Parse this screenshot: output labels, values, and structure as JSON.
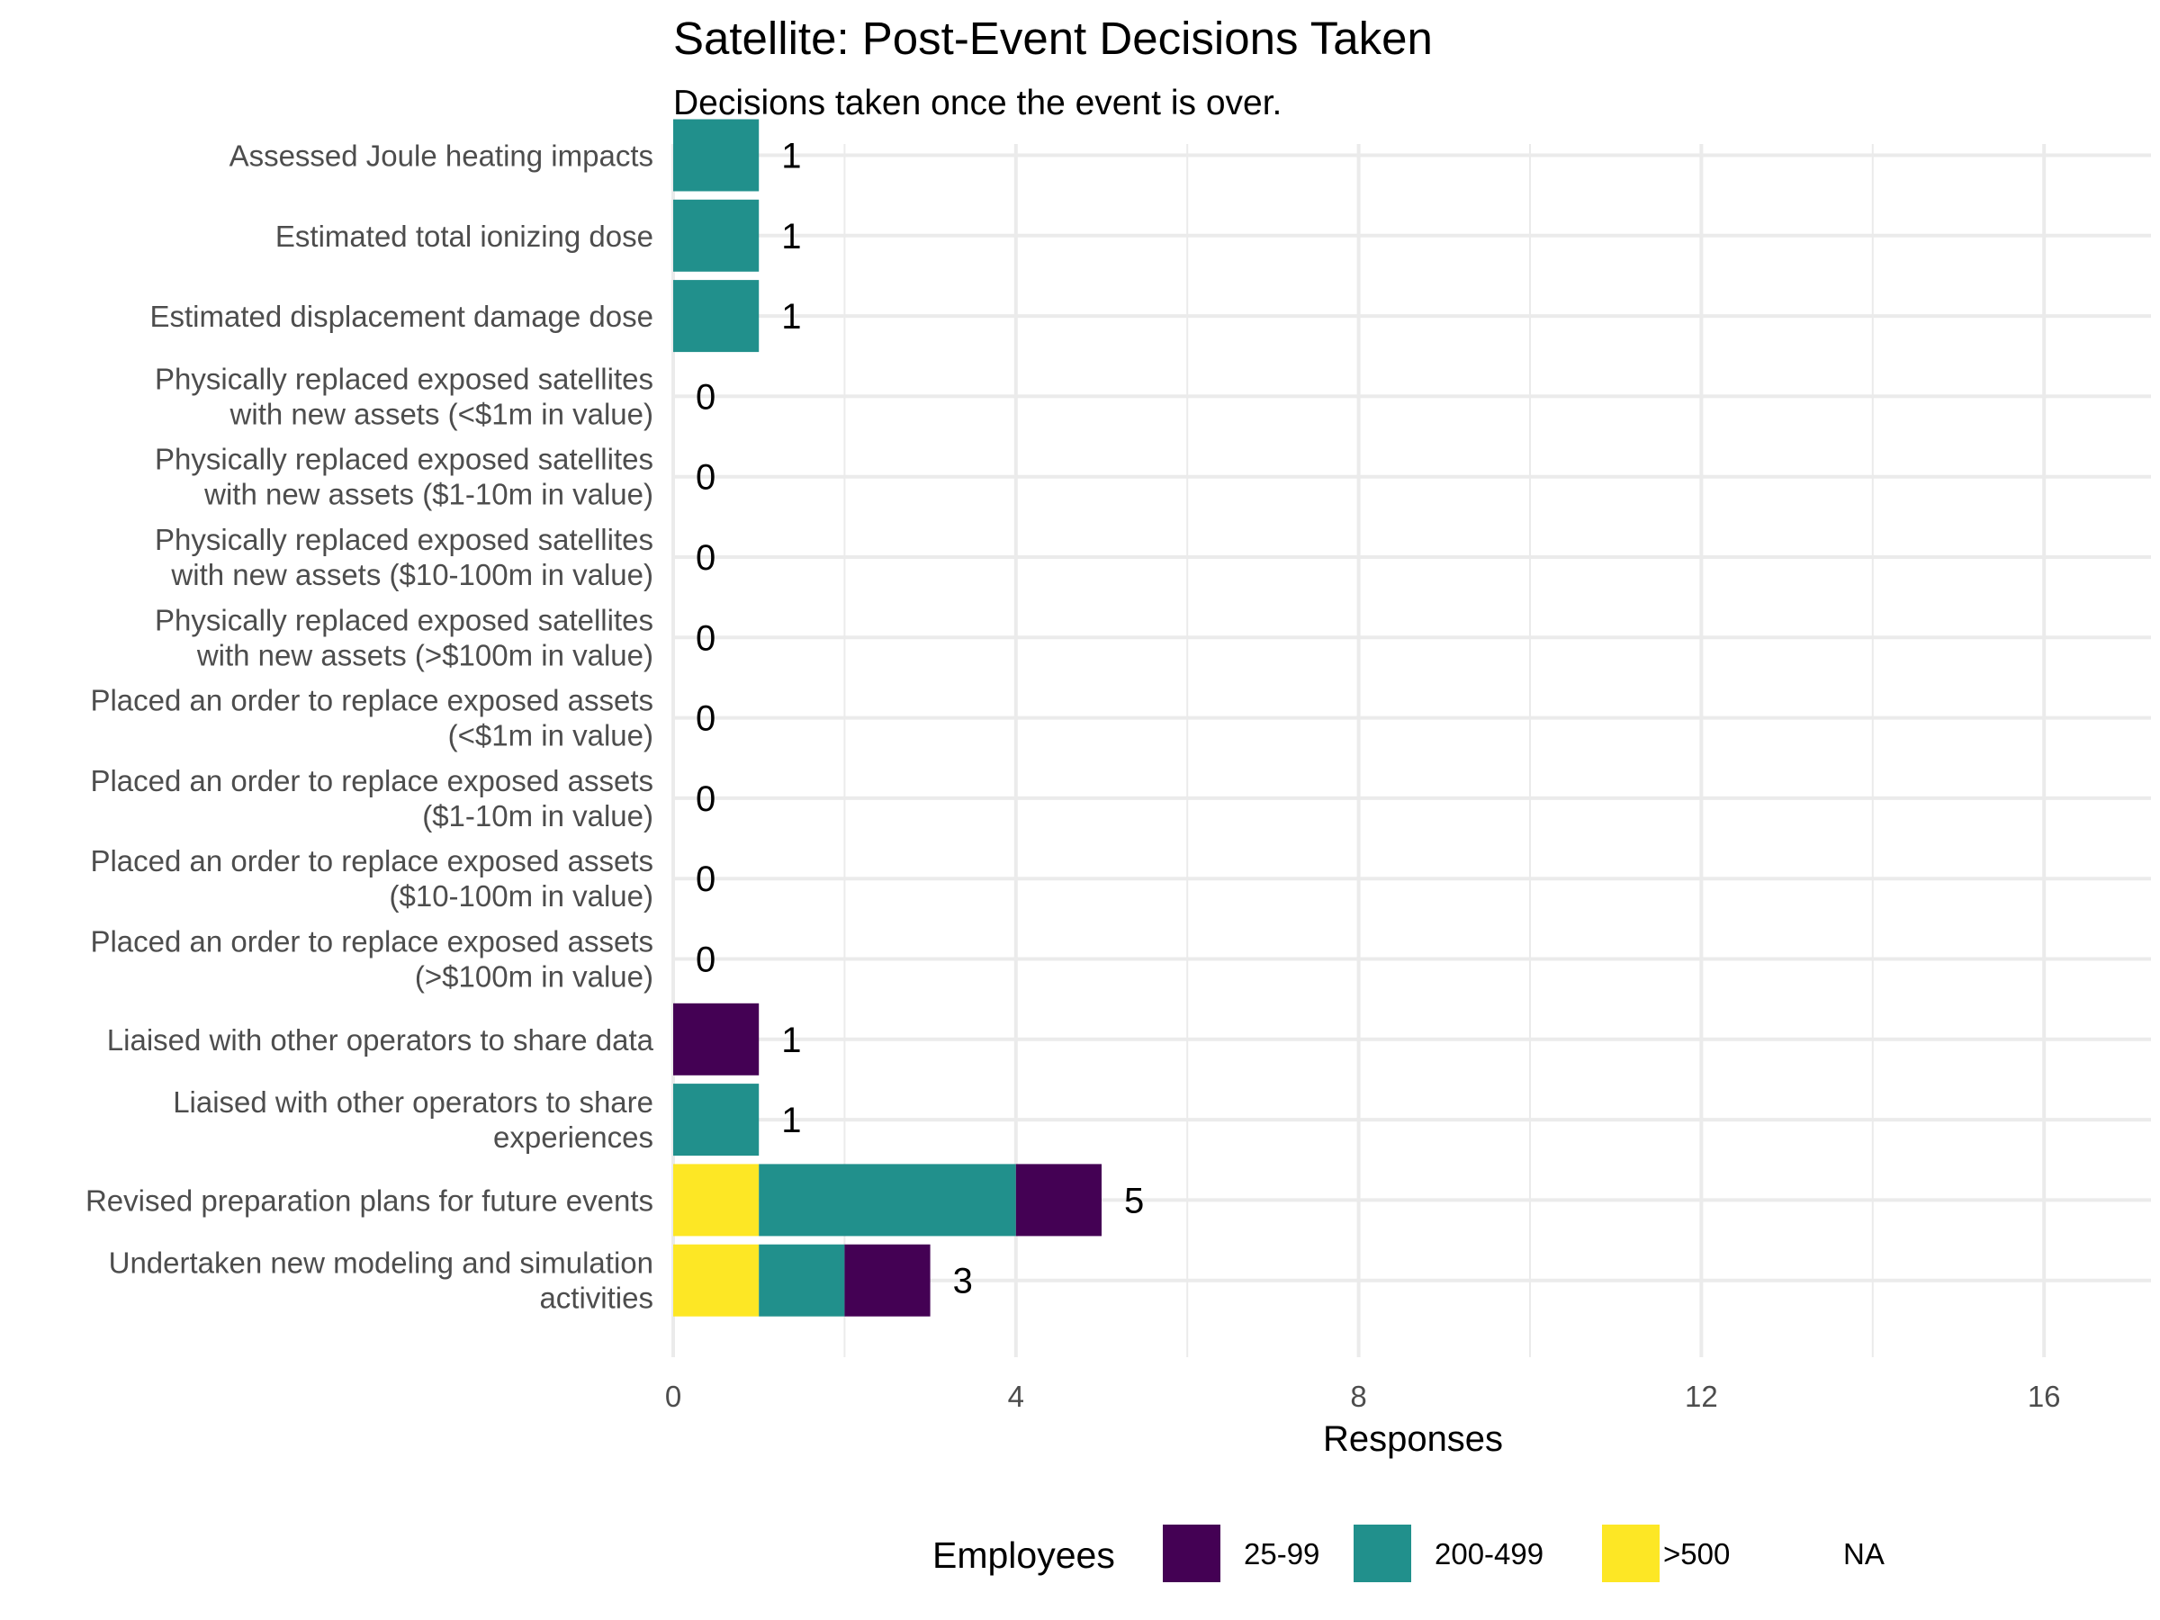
{
  "chart_data": {
    "type": "bar",
    "orientation": "horizontal",
    "stacked": true,
    "title": "Satellite: Post-Event Decisions Taken",
    "subtitle": "Decisions taken once the event is over.",
    "xlabel": "Responses",
    "ylabel": "",
    "xlim": [
      0,
      17
    ],
    "x_ticks": [
      0,
      4,
      8,
      12,
      16
    ],
    "grid": true,
    "categories": [
      "Assessed Joule heating impacts",
      "Estimated total ionizing dose",
      "Estimated displacement damage dose",
      "Physically replaced exposed satellites\nwith new assets (<$1m in value)",
      "Physically replaced exposed satellites\nwith new assets ($1-10m in value)",
      "Physically replaced exposed satellites\nwith new assets ($10-100m in value)",
      "Physically replaced exposed satellites\nwith new assets (>$100m in value)",
      "Placed an order to replace exposed assets\n(<$1m in value)",
      "Placed an order to replace exposed assets\n($1-10m in value)",
      "Placed an order to replace exposed assets\n($10-100m in value)",
      "Placed an order to replace exposed assets\n(>$100m in value)",
      "Liaised with other operators to share data",
      "Liaised with other operators to share\nexperiences",
      "Revised preparation plans for future events",
      "Undertaken new modeling and simulation\nactivities"
    ],
    "series": [
      {
        "name": ">500",
        "color": "#fde725",
        "values": [
          0,
          0,
          0,
          0,
          0,
          0,
          0,
          0,
          0,
          0,
          0,
          0,
          0,
          1,
          1
        ]
      },
      {
        "name": "200-499",
        "color": "#21908c",
        "values": [
          1,
          1,
          1,
          0,
          0,
          0,
          0,
          0,
          0,
          0,
          0,
          0,
          1,
          3,
          1
        ]
      },
      {
        "name": "25-99",
        "color": "#440154",
        "values": [
          0,
          0,
          0,
          0,
          0,
          0,
          0,
          0,
          0,
          0,
          0,
          1,
          0,
          1,
          1
        ]
      }
    ],
    "totals": [
      1,
      1,
      1,
      0,
      0,
      0,
      0,
      0,
      0,
      0,
      0,
      1,
      1,
      5,
      3
    ],
    "legend": {
      "title": "Employees",
      "position": "bottom",
      "entries": [
        {
          "label": "25-99",
          "color": "#440154"
        },
        {
          "label": "200-499",
          "color": "#21908c"
        },
        {
          "label": ">500",
          "color": "#fde725"
        },
        {
          "label": "NA",
          "color": "none"
        }
      ]
    }
  }
}
